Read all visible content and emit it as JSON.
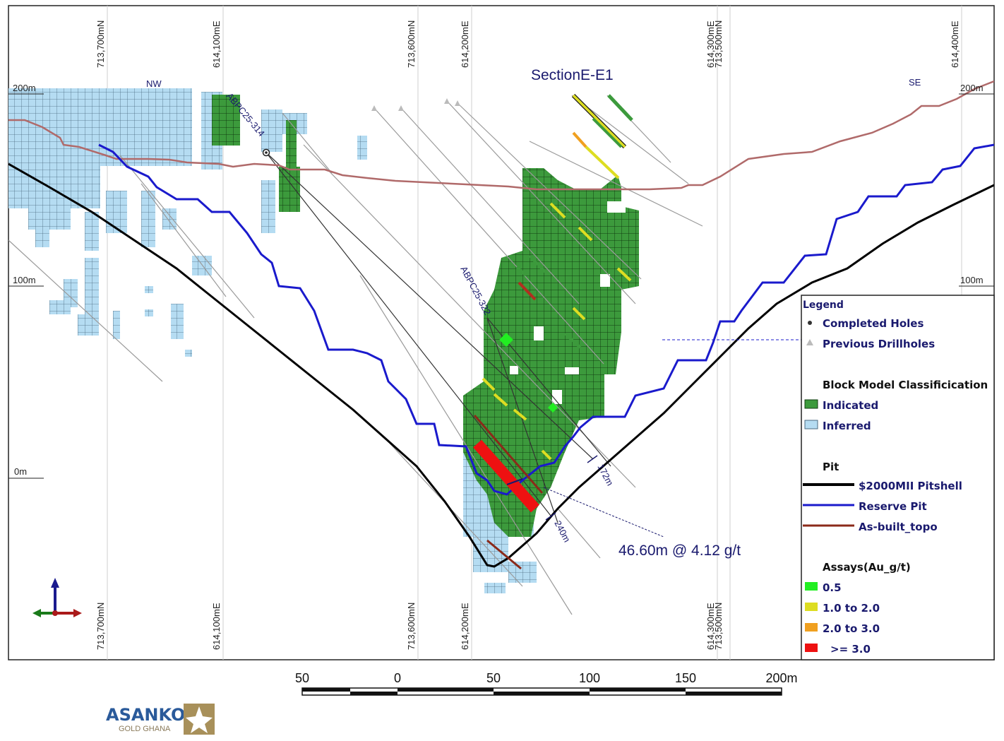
{
  "section": {
    "title": "SectionE-E1",
    "left_direction": "NW",
    "right_direction": "SE"
  },
  "grid_labels_top": [
    "713,700mN",
    "614,100mE",
    "713,600mN",
    "614,200mE",
    "614,300mE",
    "713,500mN",
    "614,400mE"
  ],
  "grid_labels_bottom": [
    "713,700mN",
    "614,100mE",
    "713,600mN",
    "614,200mE",
    "614,300mE",
    "713,500mN"
  ],
  "elevation_labels": {
    "left": [
      "200m",
      "100m",
      "0m"
    ],
    "right": [
      "200m",
      "100m"
    ]
  },
  "hole_labels": {
    "hole_1": "ABPC25-314",
    "hole_2": "ABPC25-322",
    "depth_1": "172m",
    "depth_2": "240m"
  },
  "intercept": "46.60m @ 4.12 g/t",
  "legend": {
    "title": "Legend",
    "completed_holes": "Completed Holes",
    "previous_drillholes": "Previous Drillholes",
    "block_model_title": "Block Model Classificication",
    "indicated": "Indicated",
    "inferred": "Inferred",
    "pit_title": "Pit",
    "pitshell": "$2000MII Pitshell",
    "reserve_pit": "Reserve Pit",
    "as_built": "As-built_topo",
    "assays_title": "Assays(Au_g/t)",
    "assay_1": "0.5",
    "assay_2": "1.0 to 2.0",
    "assay_3": "2.0 to 3.0",
    "assay_4": ">= 3.0"
  },
  "colors": {
    "indicated": "#3c9a3c",
    "inferred": "#b5dcf2",
    "pitshell": "#000000",
    "reserve_pit": "#1a1acc",
    "as_built": "#b06a6a",
    "assay_05": "#22ee22",
    "assay_1_2": "#dddd22",
    "assay_2_3": "#f0a020",
    "assay_3": "#ee1111",
    "annotation": "#1a1a6e"
  },
  "scale_bar": {
    "labels": [
      "50",
      "0",
      "50",
      "100",
      "150",
      "200m"
    ]
  },
  "logo": {
    "name": "ASANKO",
    "sub": "GOLD GHANA"
  }
}
